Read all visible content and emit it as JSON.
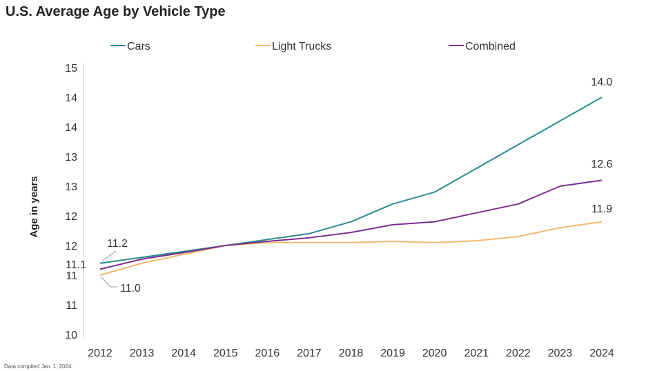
{
  "chart_data": {
    "type": "line",
    "title": "U.S. Average Age by Vehicle Type",
    "xlabel": "",
    "ylabel": "Age in years",
    "x": [
      2012,
      2013,
      2014,
      2015,
      2016,
      2017,
      2018,
      2019,
      2020,
      2021,
      2022,
      2023,
      2024
    ],
    "ylim": [
      10,
      14.5
    ],
    "yticks": [
      10,
      10.5,
      11,
      11.5,
      12,
      12.5,
      13,
      13.5,
      14,
      14.5
    ],
    "ytick_labels": [
      "10",
      "11",
      "11",
      "12",
      "12",
      "13",
      "13",
      "14",
      "14",
      "15"
    ],
    "legend_position": "top",
    "grid": false,
    "series": [
      {
        "name": "Cars",
        "color": "#2a8a8f",
        "values": [
          11.2,
          11.3,
          11.4,
          11.5,
          11.6,
          11.7,
          11.9,
          12.2,
          12.4,
          12.8,
          13.2,
          13.6,
          14.0
        ]
      },
      {
        "name": "Light Trucks",
        "color": "#f0b869",
        "values": [
          11.0,
          11.2,
          11.35,
          11.5,
          11.55,
          11.55,
          11.55,
          11.57,
          11.55,
          11.58,
          11.65,
          11.8,
          11.9
        ]
      },
      {
        "name": "Combined",
        "color": "#7b2d8e",
        "values": [
          11.1,
          11.27,
          11.38,
          11.5,
          11.57,
          11.63,
          11.72,
          11.85,
          11.9,
          12.05,
          12.2,
          12.5,
          12.6
        ]
      }
    ],
    "annotations": [
      "11.2",
      "11.1",
      "11.0",
      "14.0",
      "12.6",
      "11.9"
    ],
    "footnote": "Data compiled Jan. 1, 2024."
  }
}
